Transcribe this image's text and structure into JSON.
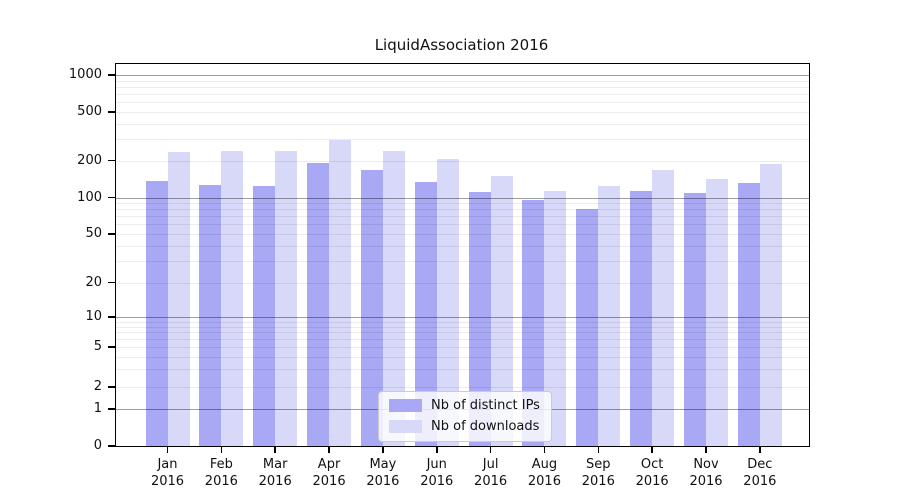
{
  "chart_data": {
    "type": "bar",
    "title": "LiquidAssociation 2016",
    "categories": [
      "Jan",
      "Feb",
      "Mar",
      "Apr",
      "May",
      "Jun",
      "Jul",
      "Aug",
      "Sep",
      "Oct",
      "Nov",
      "Dec"
    ],
    "year": "2016",
    "series": [
      {
        "name": "Nb of distinct IPs",
        "color": "#a8a8f4",
        "values": [
          135,
          127,
          123,
          192,
          166,
          133,
          111,
          96,
          81,
          113,
          108,
          130
        ]
      },
      {
        "name": "Nb of downloads",
        "color": "#d8d8f8",
        "values": [
          236,
          239,
          239,
          296,
          238,
          206,
          151,
          113,
          123,
          166,
          142,
          189
        ]
      }
    ],
    "xlabel": "",
    "ylabel": "",
    "yscale": "symlog",
    "ylim": [
      0,
      1230
    ],
    "y_ticks": [
      "0",
      "1",
      "2",
      "5",
      "10",
      "20",
      "50",
      "100",
      "200",
      "500",
      "1000"
    ],
    "grid": true,
    "legend_position": "lower center"
  },
  "colors": {
    "bar_distinct_ips": "#a8a8f4",
    "bar_downloads": "#d8d8f8",
    "grid_major": "#9e9e9e",
    "grid_minor": "#ececec",
    "spine": "#000000",
    "text": "#111111",
    "legend_border": "#cccccc"
  }
}
